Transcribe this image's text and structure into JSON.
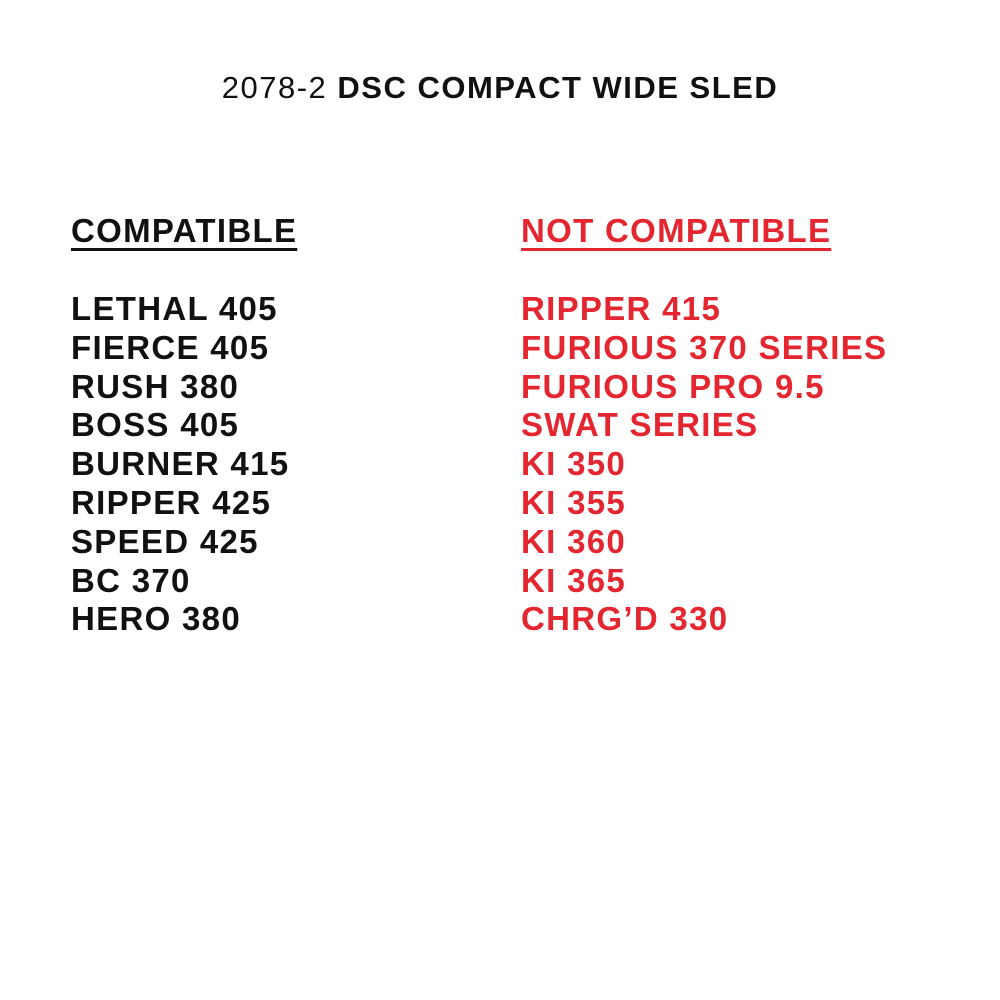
{
  "title": {
    "model": "2078-2",
    "name": "DSC COMPACT WIDE SLED"
  },
  "colors": {
    "text": "#111111",
    "not_compatible": "#e3262f"
  },
  "compatible": {
    "heading": "COMPATIBLE",
    "items": [
      "LETHAL 405",
      "FIERCE 405",
      "RUSH 380",
      "BOSS 405",
      "BURNER 415",
      "RIPPER 425",
      "SPEED 425",
      "BC 370",
      "HERO 380"
    ]
  },
  "not_compatible": {
    "heading": "NOT COMPATIBLE",
    "items": [
      "RIPPER 415",
      "FURIOUS 370 SERIES",
      "FURIOUS PRO 9.5",
      "SWAT SERIES",
      "KI 350",
      "KI 355",
      "KI 360",
      "KI 365",
      "CHRG’D 330"
    ]
  }
}
